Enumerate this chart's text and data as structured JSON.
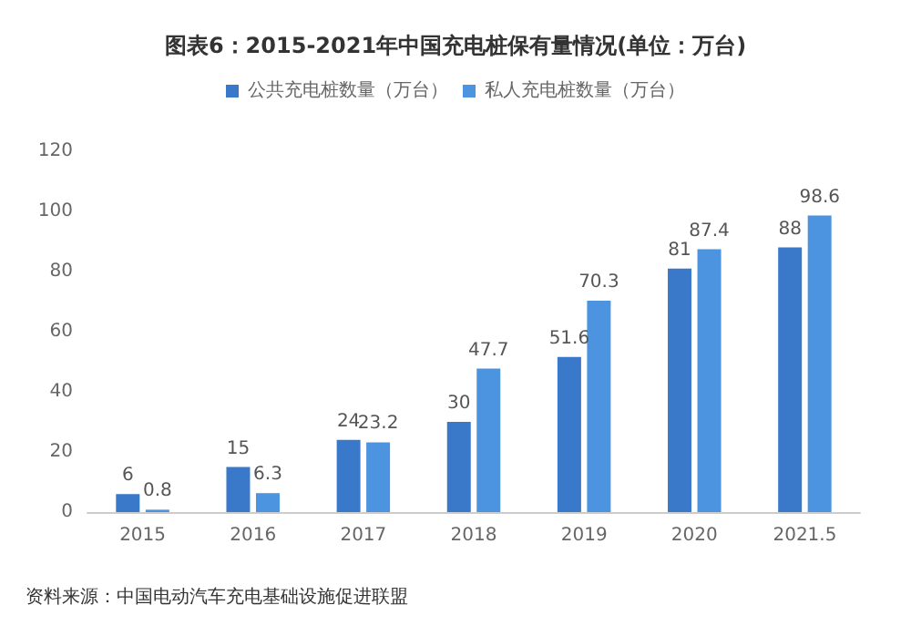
{
  "chart_data": {
    "type": "bar",
    "title": "图表6：2015-2021年中国充电桩保有量情况(单位：万台)",
    "categories": [
      "2015",
      "2016",
      "2017",
      "2018",
      "2019",
      "2020",
      "2021.5"
    ],
    "series": [
      {
        "name": "公共充电桩数量（万台）",
        "color": "#3a78c9",
        "values": [
          6,
          15,
          24,
          30,
          51.6,
          81,
          88
        ]
      },
      {
        "name": "私人充电桩数量（万台）",
        "color": "#4d94e0",
        "values": [
          0.8,
          6.3,
          23.2,
          47.7,
          70.3,
          87.4,
          98.6
        ]
      }
    ],
    "ylim": [
      0,
      120
    ],
    "yticks": [
      0,
      20,
      40,
      60,
      80,
      100,
      120
    ],
    "grid": false,
    "legend": "top",
    "data_labels": true,
    "annotations": [
      "资料来源：中国电动汽车充电基础设施促进联盟"
    ]
  }
}
